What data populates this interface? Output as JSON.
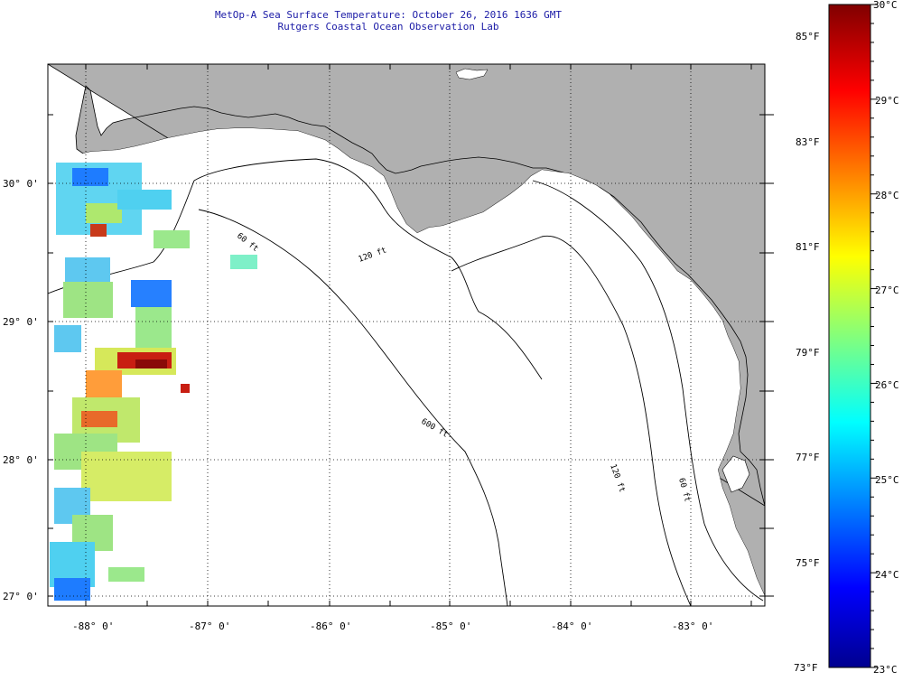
{
  "title": "MetOp-A Sea Surface Temperature:  October 26, 2016 1636 GMT",
  "subtitle": "Rutgers Coastal Ocean Observation Lab",
  "axes": {
    "lon_labels": [
      "-88° 0'",
      "-87° 0'",
      "-86° 0'",
      "-85° 0'",
      "-84° 0'",
      "-83° 0'"
    ],
    "lat_labels": [
      "30° 0'",
      "29° 0'",
      "28° 0'",
      "27° 0'"
    ],
    "lon_range": [
      -88.3,
      -82.4
    ],
    "lat_range": [
      26.95,
      30.85
    ]
  },
  "isobaths": [
    "60 ft",
    "120 ft",
    "600 ft",
    "120 ft",
    "60 ft"
  ],
  "colorbar": {
    "celsius": [
      "30°C",
      "29°C",
      "28°C",
      "27°C",
      "26°C",
      "25°C",
      "24°C",
      "23°C"
    ],
    "fahrenheit": [
      "85°F",
      "83°F",
      "81°F",
      "79°F",
      "77°F",
      "75°F",
      "73°F"
    ],
    "range_c": [
      23,
      30
    ]
  },
  "colors": {
    "land": "#b0b0b0",
    "ocean": "#ffffff",
    "title": "#1a1aa6"
  }
}
